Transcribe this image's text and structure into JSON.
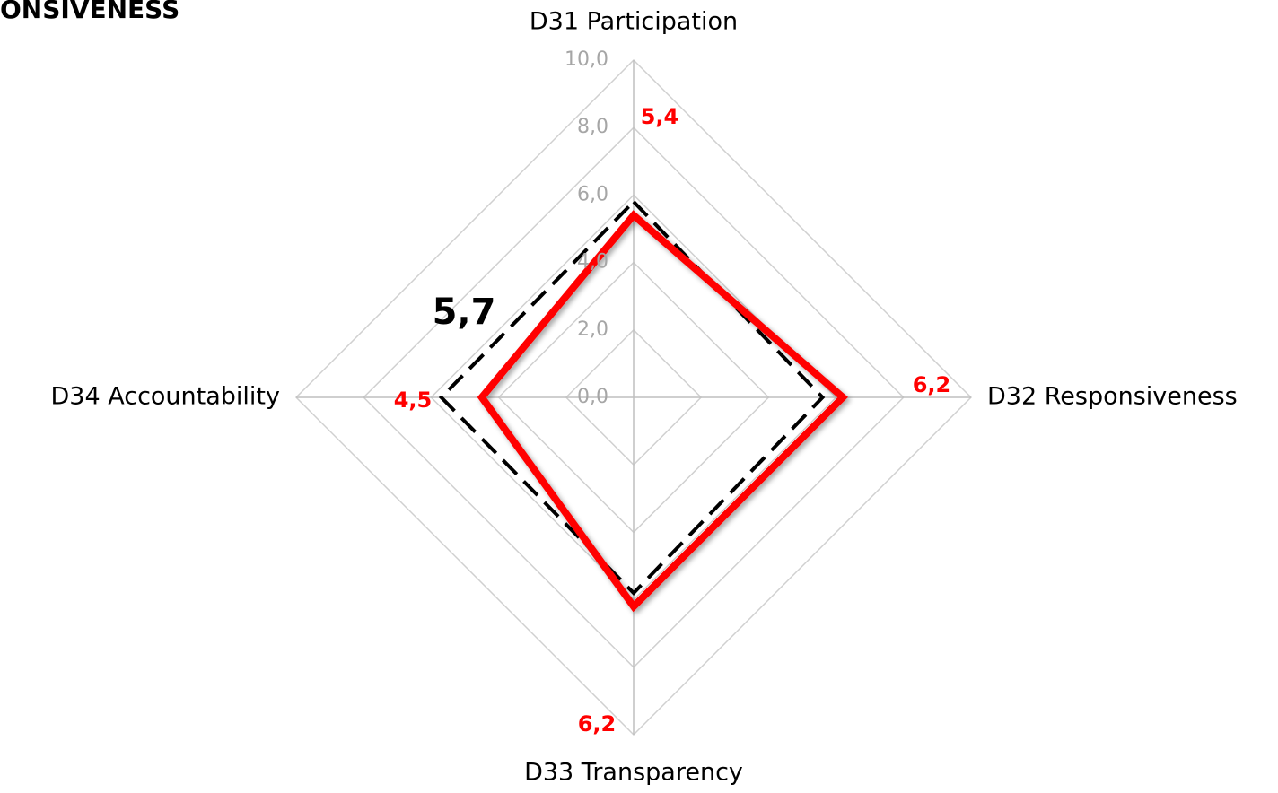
{
  "chart_data": {
    "type": "radar",
    "title": "ONSIVENESS",
    "categories": [
      "D31 Participation",
      "D32  Responsiveness",
      "D33  Transparency",
      "D34  Accountability"
    ],
    "series": [
      {
        "color": "#000000",
        "dashed": true,
        "values": [
          5.8,
          5.6,
          5.8,
          5.7
        ]
      },
      {
        "color": "#ff0000",
        "dashed": false,
        "values": [
          5.4,
          6.2,
          6.2,
          4.5
        ],
        "value_labels": [
          "5,4",
          "6,2",
          "6,2",
          "4,5"
        ]
      }
    ],
    "annotation": {
      "value": 5.7,
      "label": "5,7"
    },
    "rlim": [
      0,
      10
    ],
    "rticks": [
      {
        "value": 0,
        "label": "0,0"
      },
      {
        "value": 2,
        "label": "2,0"
      },
      {
        "value": 4,
        "label": "4,0"
      },
      {
        "value": 6,
        "label": "6,0"
      },
      {
        "value": 8,
        "label": "8,0"
      },
      {
        "value": 10,
        "label": "10,0"
      }
    ],
    "grid": true
  }
}
